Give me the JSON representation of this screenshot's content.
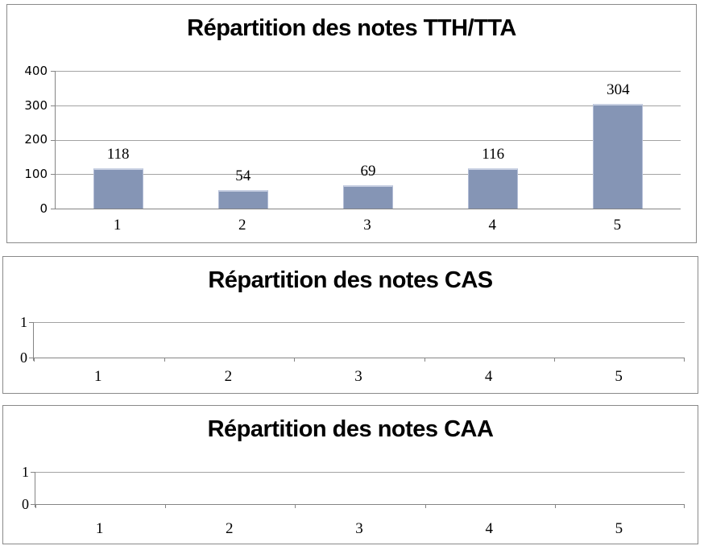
{
  "page": {
    "background": "#FFFFFF"
  },
  "colors": {
    "bar_fill": "#8595B5",
    "bar_highlight": "#C8D0E2",
    "gridline": "#A3A3A3",
    "axis": "#858585",
    "panel_border": "#8A8A8A",
    "text": "#000000"
  },
  "chart_data": [
    {
      "type": "bar",
      "title": "Répartition des notes TTH/TTA",
      "categories": [
        "1",
        "2",
        "3",
        "4",
        "5"
      ],
      "values": [
        118,
        54,
        69,
        116,
        304
      ],
      "y_ticks": [
        "400",
        "300",
        "200",
        "100",
        "0"
      ],
      "ylim": [
        0,
        400
      ],
      "xlabel": "",
      "ylabel": "",
      "grid": true,
      "legend": false,
      "bar_color": "#8595B5"
    },
    {
      "type": "bar",
      "title": "Répartition des notes CAS",
      "categories": [
        "1",
        "2",
        "3",
        "4",
        "5"
      ],
      "values": [],
      "y_ticks": [
        "1",
        "0"
      ],
      "ylim": [
        0,
        1
      ],
      "xlabel": "",
      "ylabel": "",
      "grid": true,
      "legend": false
    },
    {
      "type": "bar",
      "title": "Répartition des notes CAA",
      "categories": [
        "1",
        "2",
        "3",
        "4",
        "5"
      ],
      "values": [],
      "y_ticks": [
        "1",
        "0"
      ],
      "ylim": [
        0,
        1
      ],
      "xlabel": "",
      "ylabel": "",
      "grid": true,
      "legend": false
    }
  ]
}
